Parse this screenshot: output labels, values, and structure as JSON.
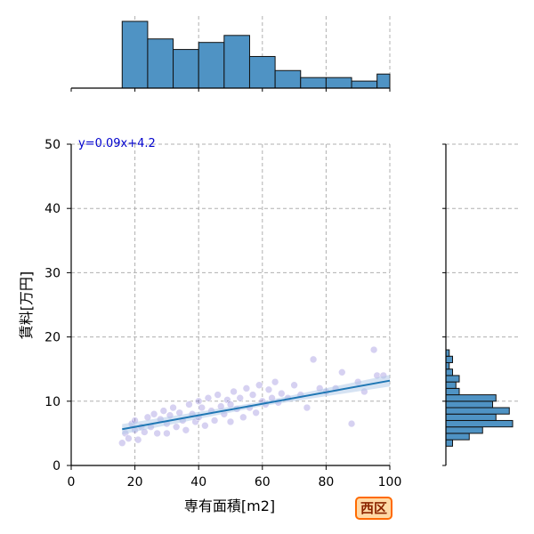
{
  "chart_data": {
    "type": "scatter",
    "xlabel": "専有面積[m2]",
    "ylabel": "賃料[万円]",
    "xlim": [
      0,
      100
    ],
    "ylim": [
      0,
      50
    ],
    "x_ticks": [
      "0",
      "20",
      "40",
      "60",
      "80",
      "100"
    ],
    "y_ticks": [
      "0",
      "10",
      "20",
      "30",
      "40",
      "50"
    ],
    "grid": true,
    "regression": {
      "equation": "y=0.09x+4.2",
      "slope": 0.09,
      "intercept": 4.2,
      "x_range": [
        16,
        100
      ]
    },
    "points": [
      [
        16,
        3.5
      ],
      [
        17,
        5.0
      ],
      [
        18,
        4.2
      ],
      [
        19,
        6.5
      ],
      [
        20,
        7.0
      ],
      [
        20,
        5.5
      ],
      [
        21,
        4.0
      ],
      [
        22,
        6.0
      ],
      [
        23,
        5.2
      ],
      [
        24,
        7.5
      ],
      [
        25,
        6.0
      ],
      [
        26,
        8.0
      ],
      [
        27,
        5.0
      ],
      [
        28,
        7.2
      ],
      [
        29,
        8.5
      ],
      [
        30,
        6.5
      ],
      [
        30,
        5.0
      ],
      [
        31,
        7.8
      ],
      [
        32,
        9.0
      ],
      [
        33,
        6.0
      ],
      [
        34,
        8.2
      ],
      [
        35,
        7.0
      ],
      [
        36,
        5.5
      ],
      [
        37,
        9.5
      ],
      [
        38,
        8.0
      ],
      [
        39,
        6.8
      ],
      [
        40,
        10.0
      ],
      [
        40,
        7.5
      ],
      [
        41,
        9.0
      ],
      [
        42,
        6.2
      ],
      [
        43,
        10.5
      ],
      [
        44,
        8.5
      ],
      [
        45,
        7.0
      ],
      [
        46,
        11.0
      ],
      [
        47,
        9.2
      ],
      [
        48,
        8.0
      ],
      [
        49,
        10.2
      ],
      [
        50,
        6.8
      ],
      [
        50,
        9.5
      ],
      [
        51,
        11.5
      ],
      [
        52,
        8.8
      ],
      [
        53,
        10.5
      ],
      [
        54,
        7.5
      ],
      [
        55,
        12.0
      ],
      [
        56,
        9.0
      ],
      [
        57,
        11.0
      ],
      [
        58,
        8.2
      ],
      [
        59,
        12.5
      ],
      [
        60,
        10.0
      ],
      [
        61,
        9.5
      ],
      [
        62,
        11.8
      ],
      [
        63,
        10.5
      ],
      [
        64,
        13.0
      ],
      [
        65,
        9.8
      ],
      [
        66,
        11.2
      ],
      [
        68,
        10.5
      ],
      [
        70,
        12.5
      ],
      [
        72,
        11.0
      ],
      [
        74,
        9.0
      ],
      [
        76,
        16.5
      ],
      [
        78,
        12.0
      ],
      [
        80,
        11.5
      ],
      [
        83,
        12.0
      ],
      [
        85,
        14.5
      ],
      [
        88,
        6.5
      ],
      [
        90,
        13.0
      ],
      [
        92,
        11.5
      ],
      [
        95,
        18.0
      ],
      [
        96,
        14.0
      ],
      [
        98,
        14.0
      ]
    ],
    "top_histogram": {
      "bin_edges": [
        16,
        24,
        32,
        40,
        48,
        56,
        64,
        72,
        80,
        88,
        96,
        104
      ],
      "counts": [
        19,
        14,
        11,
        13,
        15,
        9,
        5,
        3,
        3,
        2,
        4
      ]
    },
    "right_histogram": {
      "bin_edges": [
        3.0,
        4.0,
        5.0,
        6.0,
        7.0,
        8.0,
        9.0,
        10.0,
        11.0,
        12.0,
        13.0,
        14.0,
        15.0,
        16.0,
        17.0,
        18.0
      ],
      "counts": [
        2,
        7,
        11,
        20,
        15,
        19,
        14,
        15,
        4,
        3,
        4,
        2,
        1,
        2,
        1
      ]
    }
  },
  "badge": {
    "label": "西区"
  },
  "colors": {
    "points": "#6a5acd",
    "regression": "#1f77b4",
    "ci_band": "#aec7e8",
    "hist_fill": "#4f93c4",
    "eq_text": "#0000cc",
    "badge_border": "#ff6a00",
    "badge_bg": "#ffd9a6",
    "badge_text": "#8b2500"
  }
}
